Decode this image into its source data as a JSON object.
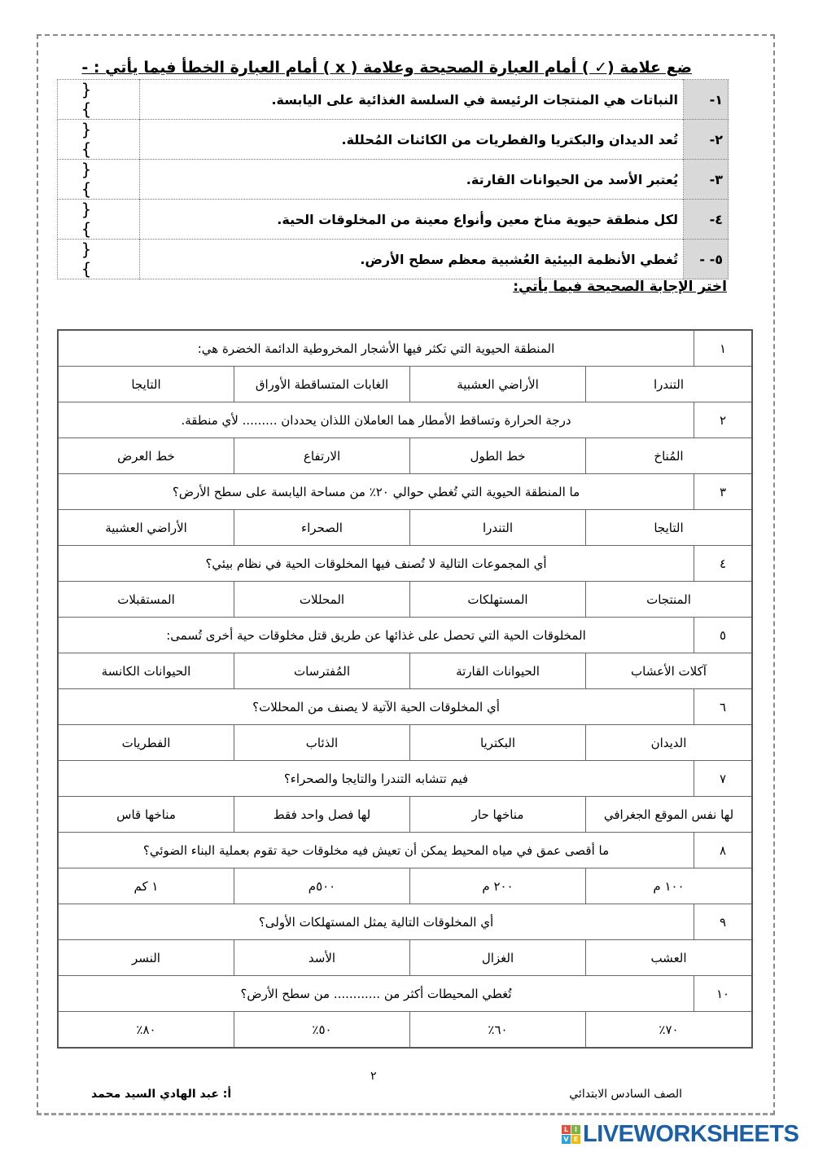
{
  "section1": {
    "title": "ضع علامة (✓ ) أمام العبارة الصحيحة وعلامة ( x ) أمام العبارة الخطأ فيما يأتي : -",
    "items": [
      {
        "num": "١-",
        "text": "النباتات هي المنتجات الرئيسة في السلسة الغذائية على اليابسة.",
        "brackets": "{ }"
      },
      {
        "num": "٢-",
        "text": "تُعد الديدان والبكتريا والفطريات من الكائنات المُحللة.",
        "brackets": "{ }"
      },
      {
        "num": "٣-",
        "text": "يُعتبر الأسد من الحيوانات القارتة.",
        "brackets": "{ }"
      },
      {
        "num": "٤-",
        "text": "لكل منطقة حيوية مناخ معين وأنواع معينة من المخلوقات الحية.",
        "brackets": "{ }"
      },
      {
        "num": "٥- -",
        "text": "تُغطي الأنظمة البيئية العُشبية معظم سطح الأرض.",
        "brackets": "{ }"
      }
    ]
  },
  "section2": {
    "title": "اختر الإجابة الصحيحة فيما يأتي:",
    "questions": [
      {
        "num": "١",
        "text": "المنطقة الحيوية التي تكثر فيها الأشجار المخروطية الدائمة الخضرة هي:",
        "options": [
          "التندرا",
          "الأراضي العشبية",
          "الغابات المتساقطة الأوراق",
          "التايجا"
        ]
      },
      {
        "num": "٢",
        "text": "درجة الحرارة وتساقط الأمطار هما العاملان اللذان يحددان ......... لأي منطقة.",
        "options": [
          "المُناخ",
          "خط الطول",
          "الارتفاع",
          "خط العرض"
        ]
      },
      {
        "num": "٣",
        "text": "ما المنطقة الحيوية التي تُغطي حوالي ٢٠٪ من مساحة اليابسة على سطح الأرض؟",
        "options": [
          "التايجا",
          "التندرا",
          "الصحراء",
          "الأراضي العشبية"
        ]
      },
      {
        "num": "٤",
        "text": "أي المجموعات التالية لا تُصنف فيها المخلوقات الحية في نظام بيئي؟",
        "options": [
          "المنتجات",
          "المستهلكات",
          "المحللات",
          "المستقبلات"
        ]
      },
      {
        "num": "٥",
        "text": "المخلوقات الحية التي تحصل على غذائها عن طريق قتل مخلوقات حية أخرى تُسمى:",
        "options": [
          "آكلات الأعشاب",
          "الحيوانات القارتة",
          "المُفترسات",
          "الحيوانات الكانسة"
        ]
      },
      {
        "num": "٦",
        "text": "أي المخلوقات الحية الآتية لا يصنف من المحللات؟",
        "options": [
          "الديدان",
          "البكتريا",
          "الذئاب",
          "الفطريات"
        ]
      },
      {
        "num": "٧",
        "text": "فيم تتشابه التندرا والتايجا والصحراء؟",
        "options": [
          "لها نفس الموقع الجغرافي",
          "مناخها حار",
          "لها فصل واحد فقط",
          "مناخها قاس"
        ]
      },
      {
        "num": "٨",
        "text": "ما أقصى عمق في مياه المحيط يمكن أن تعيش فيه مخلوقات حية تقوم بعملية البناء الضوئي؟",
        "options": [
          "١٠٠ م",
          "٢٠٠ م",
          "٥٠٠م",
          "١ كم"
        ]
      },
      {
        "num": "٩",
        "text": "أي المخلوقات التالية يمثل المستهلكات الأولى؟",
        "options": [
          "العشب",
          "الغزال",
          "الأسد",
          "النسر"
        ]
      },
      {
        "num": "١٠",
        "text": "تُغطي المحيطات أكثر من ............ من سطح الأرض؟",
        "options": [
          "٧٠٪",
          "٦٠٪",
          "٥٠٪",
          "٨٠٪"
        ]
      }
    ]
  },
  "footer": {
    "page": "٢",
    "grade": "الصف السادس الابتدائي",
    "teacher": "أ: عبد الهادي السيد محمد"
  },
  "logo": {
    "text": "LIVEWORKSHEETS",
    "letters": [
      "L",
      "I",
      "V",
      "E"
    ],
    "colors": [
      "#e94e3c",
      "#7cb342",
      "#29a3dd",
      "#f5b800"
    ]
  }
}
